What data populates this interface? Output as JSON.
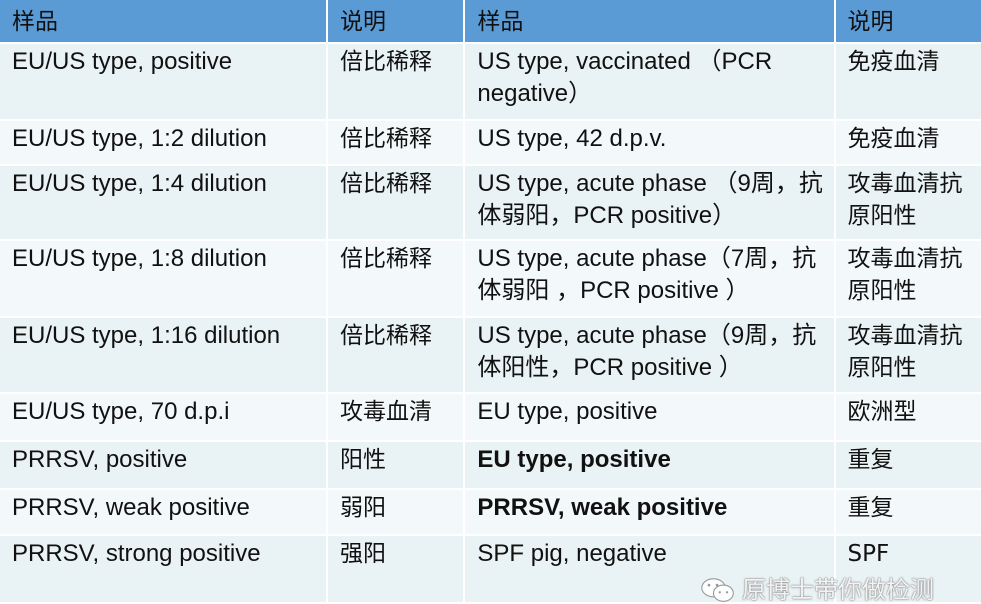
{
  "header": [
    "样品",
    "说明",
    "样品",
    "说明"
  ],
  "rows": [
    {
      "s1": "EU/US type, positive",
      "d1": "倍比稀释",
      "s2": "US type, vaccinated （PCR negative）",
      "d2": "免疫血清",
      "h": 75
    },
    {
      "s1": "EU/US type, 1:2 dilution",
      "d1": "倍比稀释",
      "s2": "US type, 42 d.p.v.",
      "d2": "免疫血清",
      "h": 43
    },
    {
      "s1": "EU/US type, 1:4 dilution",
      "d1": "倍比稀释",
      "s2": "US type, acute phase （9周，抗体弱阳，PCR positive）",
      "d2": "攻毒血清抗原阳性",
      "h": 73
    },
    {
      "s1": "EU/US type, 1:8 dilution",
      "d1": "倍比稀释",
      "s2": "US type, acute phase（7周，抗体弱阳 ，PCR positive ）",
      "d2": "攻毒血清抗原阳性",
      "h": 75
    },
    {
      "s1": "EU/US type, 1:16 dilution",
      "d1": "倍比稀释",
      "s2": "US type, acute phase（9周，抗体阳性，PCR positive ）",
      "d2": "攻毒血清抗原阳性",
      "h": 74
    },
    {
      "s1": "EU/US type, 70 d.p.i",
      "d1": "攻毒血清",
      "s2": "EU type, positive",
      "d2": "欧洲型",
      "h": 46
    },
    {
      "s1": "PRRSV, positive",
      "d1": "阳性",
      "s2": "EU type, positive",
      "d2": "重复",
      "bold": true,
      "h": 46
    },
    {
      "s1": "PRRSV, weak positive",
      "d1": "弱阳",
      "s2": "PRRSV, weak positive",
      "d2": "重复",
      "bold": true,
      "h": 44
    },
    {
      "s1": "PRRSV, strong positive",
      "d1": "强阳",
      "s2": "SPF pig, negative",
      "d2": "SPF",
      "h": 66
    }
  ],
  "watermark": {
    "text": "原博士带你做检测",
    "icon": "wechat-icon"
  },
  "colors": {
    "header": "#5b9bd5",
    "row_odd": "#e9f2f4",
    "row_even": "#f3f8fa"
  }
}
